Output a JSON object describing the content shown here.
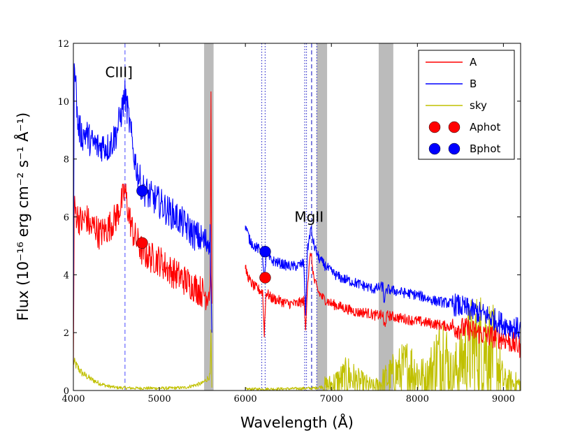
{
  "chart_data": {
    "type": "line",
    "xlabel": "Wavelength (Å)",
    "ylabel": "Flux (10⁻¹⁶ erg cm⁻² s⁻¹ Å⁻¹)",
    "xlim": [
      4000,
      9200
    ],
    "ylim": [
      0,
      12
    ],
    "xticks": [
      4000,
      5000,
      6000,
      7000,
      8000,
      9000
    ],
    "yticks": [
      0,
      2,
      4,
      6,
      8,
      10,
      12
    ],
    "grid": false,
    "legend": "top-right",
    "shaded_bands": [
      [
        5520,
        5630
      ],
      [
        6830,
        6950
      ],
      [
        7550,
        7720
      ]
    ],
    "vlines": [
      {
        "x": 4600,
        "style": "dashed",
        "color": "#6666ff"
      },
      {
        "x": 6190,
        "style": "dotted",
        "color": "#3333cc"
      },
      {
        "x": 6230,
        "style": "dotted",
        "color": "#3333cc"
      },
      {
        "x": 6690,
        "style": "dotted",
        "color": "#3333cc"
      },
      {
        "x": 6710,
        "style": "dotted",
        "color": "#3333cc"
      },
      {
        "x": 6770,
        "style": "dashed",
        "color": "#3333cc"
      },
      {
        "x": 6830,
        "style": "dotted",
        "color": "#3333cc"
      }
    ],
    "annotations": [
      {
        "text": "CIII]",
        "x": 4530,
        "y": 11.0
      },
      {
        "text": "MgII",
        "x": 6740,
        "y": 6.0
      }
    ],
    "series": [
      {
        "name": "A",
        "kind": "line",
        "color": "#ff0000",
        "points": [
          [
            4000,
            0.5
          ],
          [
            4010,
            6.3
          ],
          [
            4050,
            6.0
          ],
          [
            4100,
            5.8
          ],
          [
            4150,
            6.0
          ],
          [
            4200,
            5.6
          ],
          [
            4250,
            5.7
          ],
          [
            4300,
            5.4
          ],
          [
            4350,
            5.5
          ],
          [
            4400,
            5.6
          ],
          [
            4450,
            5.8
          ],
          [
            4500,
            6.0
          ],
          [
            4550,
            6.4
          ],
          [
            4600,
            6.9
          ],
          [
            4650,
            6.0
          ],
          [
            4700,
            5.4
          ],
          [
            4750,
            5.1
          ],
          [
            4800,
            4.8
          ],
          [
            4900,
            4.6
          ],
          [
            5000,
            4.5
          ],
          [
            5100,
            4.2
          ],
          [
            5200,
            4.0
          ],
          [
            5300,
            3.8
          ],
          [
            5400,
            3.6
          ],
          [
            5500,
            3.4
          ],
          [
            5550,
            3.3
          ],
          [
            5590,
            3.5
          ],
          [
            5600,
            10.2
          ],
          [
            5610,
            3.0
          ],
          [
            6000,
            4.2
          ],
          [
            6050,
            3.8
          ],
          [
            6100,
            3.6
          ],
          [
            6150,
            3.5
          ],
          [
            6200,
            3.4
          ],
          [
            6220,
            2.0
          ],
          [
            6240,
            3.4
          ],
          [
            6300,
            3.2
          ],
          [
            6400,
            3.1
          ],
          [
            6500,
            3.0
          ],
          [
            6600,
            3.0
          ],
          [
            6680,
            3.1
          ],
          [
            6700,
            2.1
          ],
          [
            6720,
            3.6
          ],
          [
            6760,
            4.8
          ],
          [
            6800,
            3.8
          ],
          [
            6850,
            3.4
          ],
          [
            6900,
            3.2
          ],
          [
            7000,
            3.0
          ],
          [
            7100,
            2.9
          ],
          [
            7200,
            2.8
          ],
          [
            7300,
            2.7
          ],
          [
            7400,
            2.7
          ],
          [
            7500,
            2.6
          ],
          [
            7600,
            2.6
          ],
          [
            7610,
            2.2
          ],
          [
            7650,
            2.6
          ],
          [
            7800,
            2.5
          ],
          [
            8000,
            2.4
          ],
          [
            8200,
            2.3
          ],
          [
            8400,
            2.2
          ],
          [
            8600,
            2.1
          ],
          [
            8800,
            1.9
          ],
          [
            9000,
            1.8
          ],
          [
            9200,
            1.5
          ]
        ]
      },
      {
        "name": "B",
        "kind": "line",
        "color": "#0000ff",
        "points": [
          [
            4000,
            1.5
          ],
          [
            4010,
            11.8
          ],
          [
            4050,
            9.2
          ],
          [
            4100,
            8.8
          ],
          [
            4150,
            8.9
          ],
          [
            4200,
            8.6
          ],
          [
            4250,
            8.5
          ],
          [
            4300,
            8.4
          ],
          [
            4350,
            8.5
          ],
          [
            4400,
            8.4
          ],
          [
            4450,
            8.6
          ],
          [
            4500,
            8.9
          ],
          [
            4550,
            9.5
          ],
          [
            4600,
            10.2
          ],
          [
            4650,
            9.3
          ],
          [
            4700,
            8.2
          ],
          [
            4750,
            7.5
          ],
          [
            4800,
            7.0
          ],
          [
            4900,
            6.7
          ],
          [
            5000,
            6.5
          ],
          [
            5100,
            6.2
          ],
          [
            5200,
            6.0
          ],
          [
            5300,
            5.7
          ],
          [
            5400,
            5.4
          ],
          [
            5500,
            5.2
          ],
          [
            5550,
            5.1
          ],
          [
            5590,
            5.3
          ],
          [
            5610,
            2.0
          ],
          [
            6000,
            5.7
          ],
          [
            6050,
            5.2
          ],
          [
            6100,
            5.0
          ],
          [
            6150,
            4.9
          ],
          [
            6200,
            4.8
          ],
          [
            6220,
            3.6
          ],
          [
            6240,
            4.7
          ],
          [
            6300,
            4.5
          ],
          [
            6400,
            4.4
          ],
          [
            6500,
            4.3
          ],
          [
            6600,
            4.3
          ],
          [
            6680,
            4.4
          ],
          [
            6700,
            2.6
          ],
          [
            6720,
            4.8
          ],
          [
            6760,
            5.6
          ],
          [
            6800,
            5.0
          ],
          [
            6850,
            4.6
          ],
          [
            6900,
            4.4
          ],
          [
            7000,
            4.1
          ],
          [
            7100,
            3.9
          ],
          [
            7200,
            3.8
          ],
          [
            7300,
            3.7
          ],
          [
            7400,
            3.6
          ],
          [
            7500,
            3.5
          ],
          [
            7600,
            3.6
          ],
          [
            7610,
            3.1
          ],
          [
            7650,
            3.5
          ],
          [
            7800,
            3.4
          ],
          [
            8000,
            3.3
          ],
          [
            8200,
            3.1
          ],
          [
            8400,
            3.0
          ],
          [
            8600,
            2.8
          ],
          [
            8800,
            2.6
          ],
          [
            9000,
            2.3
          ],
          [
            9200,
            2.1
          ]
        ]
      },
      {
        "name": "sky",
        "kind": "line",
        "color": "#c0c000",
        "points": [
          [
            4000,
            1.0
          ],
          [
            4050,
            0.8
          ],
          [
            4100,
            0.6
          ],
          [
            4150,
            0.5
          ],
          [
            4200,
            0.4
          ],
          [
            4300,
            0.25
          ],
          [
            4400,
            0.15
          ],
          [
            4500,
            0.1
          ],
          [
            4700,
            0.08
          ],
          [
            4900,
            0.08
          ],
          [
            5100,
            0.08
          ],
          [
            5300,
            0.1
          ],
          [
            5500,
            0.25
          ],
          [
            5590,
            0.5
          ],
          [
            5600,
            1.8
          ],
          [
            5610,
            0.1
          ],
          [
            6000,
            0.05
          ],
          [
            6200,
            0.05
          ],
          [
            6500,
            0.06
          ],
          [
            6800,
            0.08
          ],
          [
            7000,
            0.2
          ],
          [
            7200,
            0.5
          ],
          [
            7300,
            0.3
          ],
          [
            7500,
            0.1
          ],
          [
            7700,
            0.5
          ],
          [
            7900,
            0.8
          ],
          [
            8100,
            0.4
          ],
          [
            8300,
            1.4
          ],
          [
            8400,
            0.5
          ],
          [
            8600,
            1.4
          ],
          [
            8800,
            1.6
          ],
          [
            8900,
            1.2
          ],
          [
            9000,
            0.3
          ],
          [
            9200,
            0.2
          ]
        ]
      },
      {
        "name": "Aphot",
        "kind": "marker",
        "color": "#ff0000",
        "points": [
          [
            4800,
            5.1
          ],
          [
            6230,
            3.9
          ]
        ]
      },
      {
        "name": "Bphot",
        "kind": "marker",
        "color": "#0000ff",
        "points": [
          [
            4800,
            6.9
          ],
          [
            6230,
            4.8
          ]
        ]
      }
    ]
  }
}
